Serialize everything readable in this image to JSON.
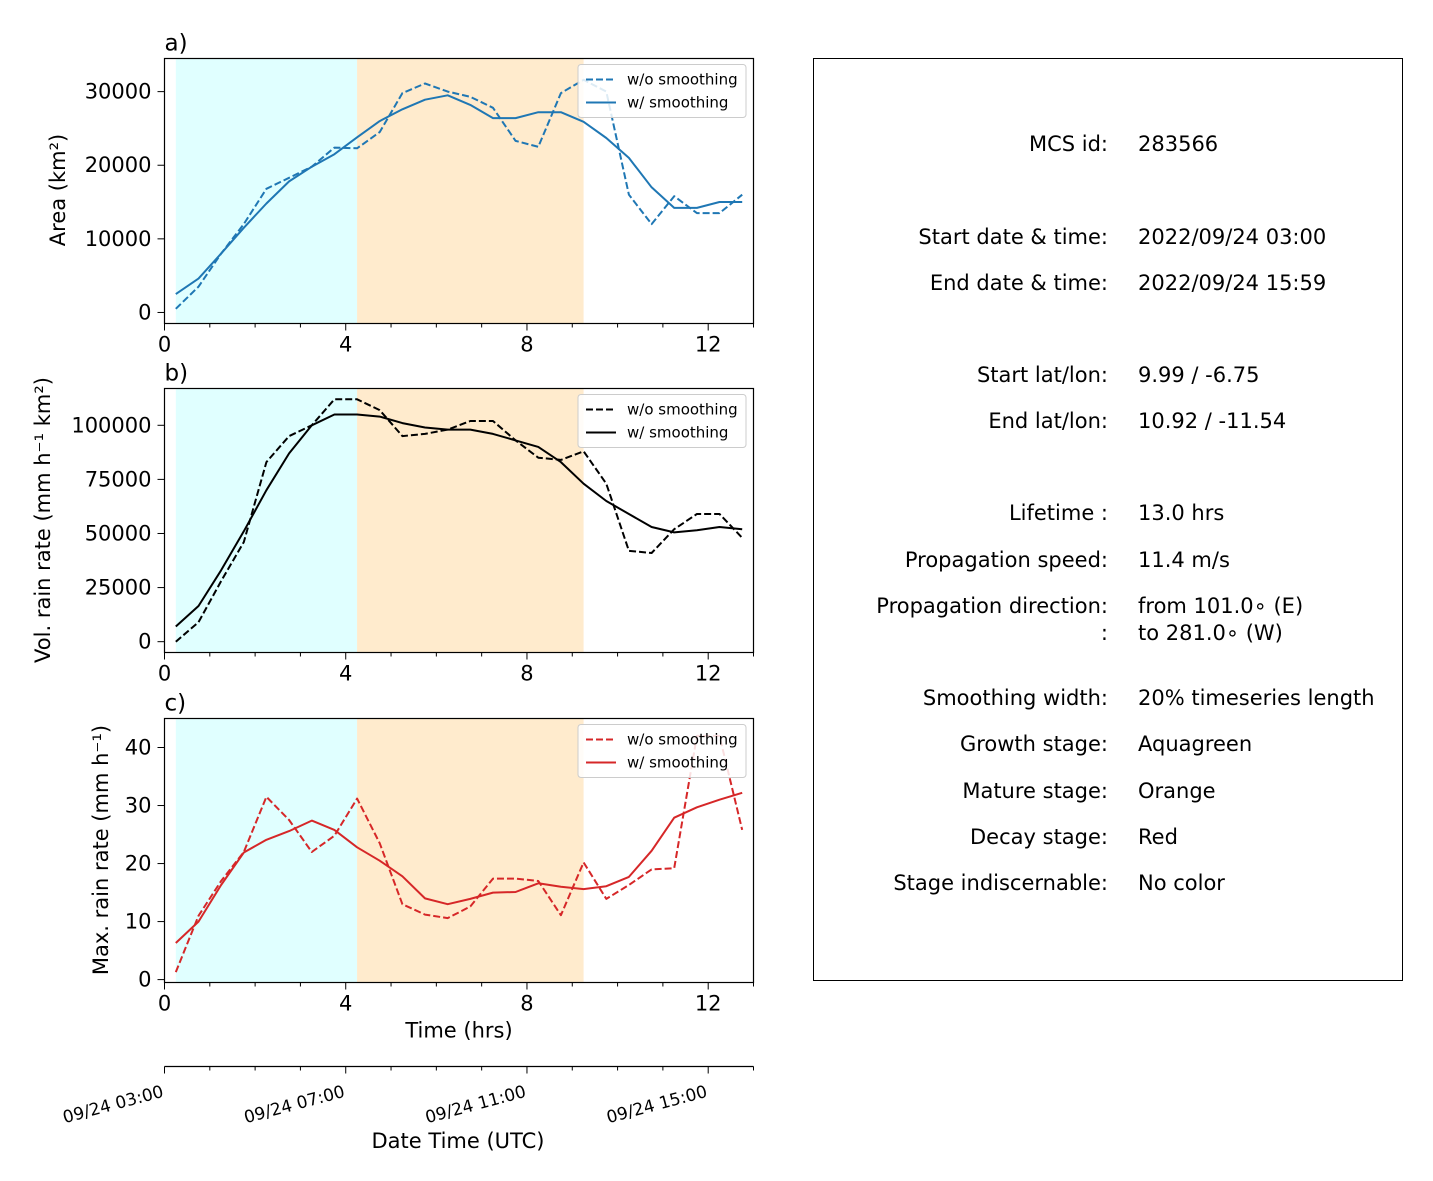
{
  "chart_data": [
    {
      "type": "line",
      "panel_label": "a)",
      "xlabel": "",
      "ylabel": "Area  (km²)",
      "xlim": [
        0,
        13
      ],
      "ylim": [
        -1500,
        34500
      ],
      "xticks": [
        0,
        4,
        8,
        12
      ],
      "yticks": [
        0,
        10000,
        20000,
        30000
      ],
      "stages": [
        {
          "name": "Growth stage",
          "from": 0.25,
          "to": 4.25,
          "color": "#e0ffff"
        },
        {
          "name": "Mature stage",
          "from": 4.25,
          "to": 9.25,
          "color": "#ffebcd"
        }
      ],
      "legend_loc": "upper right",
      "series": [
        {
          "name": "w/o smoothing",
          "style": "dashed",
          "color": "#1f77b4",
          "x": [
            0.25,
            0.75,
            1.25,
            1.75,
            2.25,
            2.75,
            3.25,
            3.75,
            4.25,
            4.75,
            5.25,
            5.75,
            6.25,
            6.75,
            7.25,
            7.75,
            8.25,
            8.75,
            9.25,
            9.75,
            10.25,
            10.75,
            11.25,
            11.75,
            12.25,
            12.75
          ],
          "y": [
            500,
            3500,
            8000,
            12000,
            16800,
            18300,
            19800,
            22400,
            22300,
            24500,
            29800,
            31100,
            30000,
            29300,
            27800,
            23300,
            22500,
            29800,
            31600,
            30000,
            16000,
            12000,
            15800,
            13500,
            13500,
            16000
          ]
        },
        {
          "name": "w/ smoothing",
          "style": "solid",
          "color": "#1f77b4",
          "x": [
            0.25,
            0.75,
            1.25,
            1.75,
            2.25,
            2.75,
            3.25,
            3.75,
            4.25,
            4.75,
            5.25,
            5.75,
            6.25,
            6.75,
            7.25,
            7.75,
            8.25,
            8.75,
            9.25,
            9.75,
            10.25,
            10.75,
            11.25,
            11.75,
            12.25,
            12.75
          ],
          "y": [
            2500,
            4600,
            8000,
            11500,
            14800,
            17800,
            19800,
            21500,
            23800,
            26000,
            27600,
            28900,
            29500,
            28200,
            26400,
            26400,
            27200,
            27200,
            25900,
            23700,
            21000,
            17000,
            14200,
            14200,
            15000,
            15000
          ]
        }
      ]
    },
    {
      "type": "line",
      "panel_label": "b)",
      "xlabel": "",
      "ylabel": "Vol. rain rate (mm h⁻¹ km²)",
      "xlim": [
        0,
        13
      ],
      "ylim": [
        -5000,
        117000
      ],
      "xticks": [
        0,
        4,
        8,
        12
      ],
      "yticks": [
        0,
        25000,
        50000,
        75000,
        100000
      ],
      "stages": [
        {
          "name": "Growth stage",
          "from": 0.25,
          "to": 4.25,
          "color": "#e0ffff"
        },
        {
          "name": "Mature stage",
          "from": 4.25,
          "to": 9.25,
          "color": "#ffebcd"
        }
      ],
      "legend_loc": "upper right",
      "series": [
        {
          "name": "w/o smoothing",
          "style": "dashed",
          "color": "#000000",
          "x": [
            0.25,
            0.75,
            1.25,
            1.75,
            2.25,
            2.75,
            3.25,
            3.75,
            4.25,
            4.75,
            5.25,
            5.75,
            6.25,
            6.75,
            7.25,
            7.75,
            8.25,
            8.75,
            9.25,
            9.75,
            10.25,
            10.75,
            11.25,
            11.75,
            12.25,
            12.75
          ],
          "y": [
            0,
            9000,
            28000,
            46000,
            83000,
            95000,
            100000,
            112000,
            112000,
            107000,
            95000,
            96000,
            98000,
            102000,
            102000,
            93000,
            85000,
            84000,
            88000,
            73000,
            42000,
            41000,
            52000,
            59000,
            59000,
            48000
          ]
        },
        {
          "name": "w/ smoothing",
          "style": "solid",
          "color": "#000000",
          "x": [
            0.25,
            0.75,
            1.25,
            1.75,
            2.25,
            2.75,
            3.25,
            3.75,
            4.25,
            4.75,
            5.25,
            5.75,
            6.25,
            6.75,
            7.25,
            7.75,
            8.25,
            8.75,
            9.25,
            9.75,
            10.25,
            10.75,
            11.25,
            11.75,
            12.25,
            12.75
          ],
          "y": [
            7000,
            16500,
            33000,
            51000,
            70000,
            87000,
            100000,
            105000,
            105000,
            104000,
            101000,
            99000,
            98000,
            98000,
            96000,
            93000,
            90000,
            83000,
            73000,
            65000,
            59000,
            53000,
            50500,
            51500,
            53000,
            52000
          ]
        }
      ]
    },
    {
      "type": "line",
      "panel_label": "c)",
      "xlabel": "Time (hrs)",
      "ylabel": "Max. rain rate  (mm h⁻¹)",
      "xlim": [
        0,
        13
      ],
      "ylim": [
        -0.5,
        45
      ],
      "xticks": [
        0,
        4,
        8,
        12
      ],
      "yticks": [
        0,
        10,
        20,
        30,
        40
      ],
      "stages": [
        {
          "name": "Growth stage",
          "from": 0.25,
          "to": 4.25,
          "color": "#e0ffff"
        },
        {
          "name": "Mature stage",
          "from": 4.25,
          "to": 9.25,
          "color": "#ffebcd"
        }
      ],
      "legend_loc": "upper right",
      "series": [
        {
          "name": "w/o smoothing",
          "style": "dashed",
          "color": "#d62728",
          "x": [
            0.25,
            0.75,
            1.25,
            1.75,
            2.25,
            2.75,
            3.25,
            3.75,
            4.25,
            4.75,
            5.25,
            5.75,
            6.25,
            6.75,
            7.25,
            7.75,
            8.25,
            8.75,
            9.25,
            9.75,
            10.25,
            10.75,
            11.25,
            11.75,
            12.25,
            12.75
          ],
          "y": [
            1.3,
            11,
            17,
            22,
            31.5,
            27.5,
            22,
            24.8,
            31.2,
            23.5,
            13,
            11.2,
            10.6,
            12.6,
            17.4,
            17.4,
            17,
            11.1,
            20.2,
            13.9,
            16.3,
            19,
            19.2,
            42,
            42,
            25.8
          ]
        },
        {
          "name": "w/ smoothing",
          "style": "solid",
          "color": "#d62728",
          "x": [
            0.25,
            0.75,
            1.25,
            1.75,
            2.25,
            2.75,
            3.25,
            3.75,
            4.25,
            4.75,
            5.25,
            5.75,
            6.25,
            6.75,
            7.25,
            7.75,
            8.25,
            8.75,
            9.25,
            9.75,
            10.25,
            10.75,
            11.25,
            11.75,
            12.25,
            12.75
          ],
          "y": [
            6.3,
            10,
            16.3,
            21.9,
            24.1,
            25.6,
            27.4,
            25.8,
            22.8,
            20.5,
            17.8,
            14,
            13,
            13.9,
            15,
            15.1,
            16.6,
            16,
            15.6,
            16.1,
            17.7,
            22.2,
            27.9,
            29.7,
            31,
            32.2
          ]
        }
      ]
    }
  ],
  "secondary_axis": {
    "xlabel": "Date Time (UTC)",
    "ticks": [
      {
        "hours": 0,
        "label": "09/24 03:00"
      },
      {
        "hours": 4,
        "label": "09/24 07:00"
      },
      {
        "hours": 8,
        "label": "09/24 11:00"
      },
      {
        "hours": 12,
        "label": "09/24 15:00"
      }
    ]
  },
  "info": {
    "rows": [
      {
        "key": "MCS id:",
        "value": "283566"
      },
      {
        "key": "Start date & time:",
        "value": "2022/09/24 03:00"
      },
      {
        "key": "End date & time:",
        "value": "2022/09/24 15:59"
      },
      {
        "key": "Start lat/lon:",
        "value": "9.99 / -6.75"
      },
      {
        "key": "End lat/lon:",
        "value": "10.92 / -11.54"
      },
      {
        "key": "Lifetime :",
        "value": "13.0 hrs"
      },
      {
        "key": "Propagation speed:",
        "value": "11.4 m/s"
      },
      {
        "key": "Propagation direction:",
        "value": "from 101.0∘ (E)"
      },
      {
        "key": ":",
        "value": "to   281.0∘ (W)"
      },
      {
        "key": "Smoothing width:",
        "value": "20% timeseries length"
      },
      {
        "key": "Growth stage:",
        "value": "Aquagreen"
      },
      {
        "key": "Mature stage:",
        "value": "Orange"
      },
      {
        "key": "Decay stage:",
        "value": "Red"
      },
      {
        "key": "Stage indiscernable:",
        "value": "No color"
      }
    ]
  }
}
